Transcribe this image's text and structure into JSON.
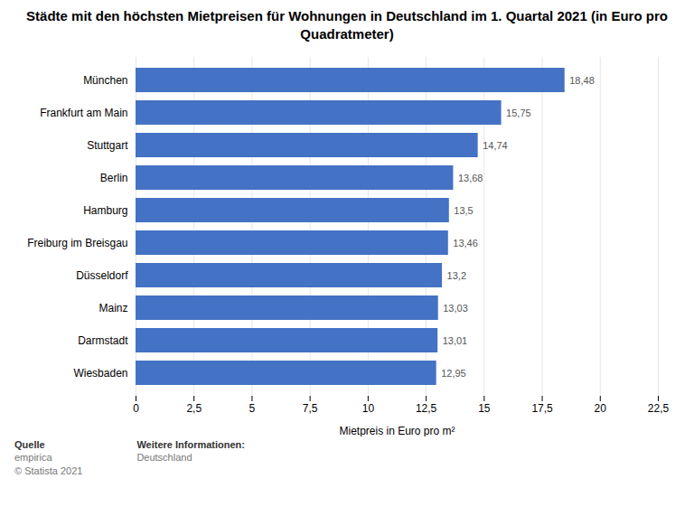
{
  "chart_data": {
    "type": "bar",
    "orientation": "horizontal",
    "title": "Städte mit den höchsten Mietpreisen für Wohnungen in Deutschland im 1. Quartal 2021 (in Euro pro Quadratmeter)",
    "categories": [
      "Wiesbaden",
      "Darmstadt",
      "Mainz",
      "Düsseldorf",
      "Freiburg im Breisgau",
      "Hamburg",
      "Berlin",
      "Stuttgart",
      "Frankfurt am Main",
      "München"
    ],
    "values": [
      12.95,
      13.01,
      13.03,
      13.2,
      13.46,
      13.5,
      13.68,
      14.74,
      15.75,
      18.48
    ],
    "value_labels": [
      "12,95",
      "13,01",
      "13,03",
      "13,2",
      "13,46",
      "13,5",
      "13,68",
      "14,74",
      "15,75",
      "18,48"
    ],
    "data_labels": true,
    "color": "#4472c4",
    "xlabel": "Mietpreis in Euro pro m²",
    "xlim": [
      0,
      22.5
    ],
    "xticks": [
      0,
      {
        "value": 2.5,
        "label": "2,5"
      },
      5,
      {
        "value": 7.5,
        "label": "7,5"
      },
      10,
      {
        "value": 12.5,
        "label": "12,5"
      },
      15,
      {
        "value": 17.5,
        "label": "17,5"
      },
      20,
      {
        "value": 22.5,
        "label": "22,5"
      }
    ],
    "grid": true,
    "annotations": [
      [
        "Quelle",
        "empirica",
        "© Statista 2021"
      ],
      [
        "Weitere Informationen:",
        "Deutschland"
      ]
    ]
  }
}
